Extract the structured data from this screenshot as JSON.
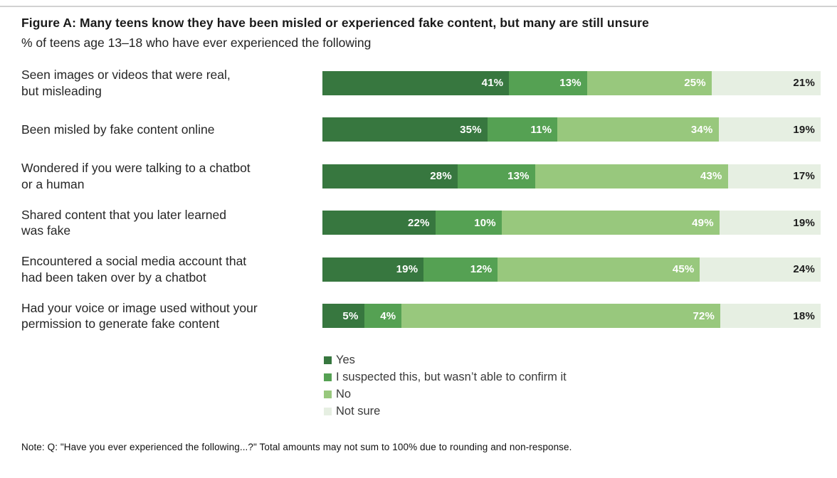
{
  "figure": {
    "title": "Figure A: Many teens know they have been misled or experienced fake content, but many are still unsure",
    "subtitle": "% of teens age 13–18 who have ever experienced the following",
    "note": "Note: Q: \"Have you ever experienced the following...?\" Total amounts may not sum to 100% due to rounding and non-response."
  },
  "chart_data": {
    "type": "bar",
    "stacked": true,
    "orientation": "horizontal",
    "value_suffix": "%",
    "x_range": [
      0,
      100
    ],
    "grid": false,
    "legend_position": "bottom-left-under-bars",
    "categories": [
      "Seen images or videos that were real,\nbut misleading",
      "Been misled by fake content online",
      "Wondered if you were talking to a chatbot\nor a human",
      "Shared content that you later learned\nwas fake",
      "Encountered a social media account that\nhad been taken over by a chatbot",
      "Had your voice or image used without your\npermission to generate fake content"
    ],
    "series": [
      {
        "name": "Yes",
        "color": "#37773f",
        "text_color": "#ffffff",
        "values": [
          41,
          35,
          28,
          22,
          19,
          5
        ]
      },
      {
        "name": "I suspected this, but wasn’t able to confirm it",
        "color": "#55a153",
        "text_color": "#ffffff",
        "values": [
          13,
          11,
          13,
          10,
          12,
          4
        ]
      },
      {
        "name": "No",
        "color": "#98c87d",
        "text_color": "#ffffff",
        "values": [
          25,
          34,
          43,
          49,
          45,
          72
        ]
      },
      {
        "name": "Not sure",
        "color": "#e6efe2",
        "text_color": "#1c1c1c",
        "values": [
          21,
          19,
          17,
          19,
          24,
          18
        ]
      }
    ]
  }
}
